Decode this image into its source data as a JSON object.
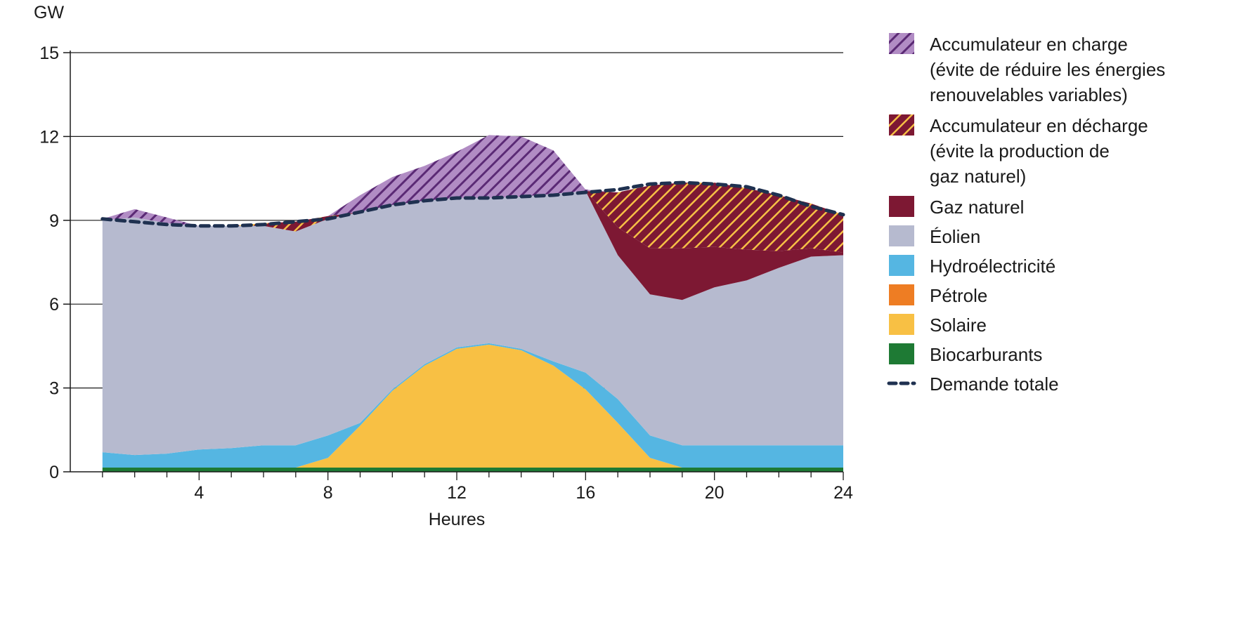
{
  "chart_data": {
    "type": "area",
    "ylabel": "GW",
    "xlabel": "Heures",
    "ylim": [
      0,
      15
    ],
    "xlim": [
      0,
      24
    ],
    "yticks": [
      0,
      3,
      6,
      9,
      12,
      15
    ],
    "xticks": [
      4,
      8,
      12,
      16,
      20,
      24
    ],
    "grid": true,
    "legend_position": "right",
    "x": [
      1,
      2,
      3,
      4,
      5,
      6,
      7,
      8,
      9,
      10,
      11,
      12,
      13,
      14,
      15,
      16,
      17,
      18,
      19,
      20,
      21,
      22,
      23,
      24
    ],
    "series": [
      {
        "key": "biocarburants",
        "label": "Biocarburants",
        "color": "#1e7a34",
        "values": [
          0.15,
          0.15,
          0.15,
          0.15,
          0.15,
          0.15,
          0.15,
          0.15,
          0.15,
          0.15,
          0.15,
          0.15,
          0.15,
          0.15,
          0.15,
          0.15,
          0.15,
          0.15,
          0.15,
          0.15,
          0.15,
          0.15,
          0.15,
          0.15
        ]
      },
      {
        "key": "petrole",
        "label": "Pétrole",
        "color": "#ee7d23",
        "values": [
          0,
          0,
          0,
          0,
          0,
          0,
          0,
          0,
          0,
          0,
          0,
          0,
          0,
          0,
          0,
          0,
          0,
          0,
          0,
          0,
          0,
          0,
          0,
          0
        ]
      },
      {
        "key": "solaire",
        "label": "Solaire",
        "color": "#f8c044",
        "values": [
          0,
          0,
          0,
          0,
          0,
          0,
          0,
          0.35,
          1.5,
          2.75,
          3.65,
          4.25,
          4.4,
          4.2,
          3.65,
          2.8,
          1.6,
          0.35,
          0,
          0,
          0,
          0,
          0,
          0
        ]
      },
      {
        "key": "hydro",
        "label": "Hydroélectricité",
        "color": "#55b6e2",
        "values": [
          0.55,
          0.45,
          0.5,
          0.65,
          0.7,
          0.8,
          0.8,
          0.8,
          0.1,
          0.05,
          0.05,
          0.05,
          0.05,
          0.05,
          0.15,
          0.6,
          0.85,
          0.8,
          0.8,
          0.8,
          0.8,
          0.8,
          0.8,
          0.8
        ]
      },
      {
        "key": "eolien",
        "label": "Éolien",
        "color": "#b6bacf",
        "values": [
          8.3,
          8.5,
          8.25,
          8.0,
          7.95,
          7.85,
          7.65,
          7.75,
          7.55,
          6.6,
          5.85,
          5.35,
          5.2,
          5.45,
          6.0,
          6.5,
          5.15,
          5.05,
          5.2,
          5.65,
          5.9,
          6.35,
          6.75,
          6.8
        ]
      },
      {
        "key": "gaz",
        "label": "Gaz naturel",
        "color": "#7d1833",
        "values": [
          0,
          0,
          0,
          0,
          0,
          0,
          0,
          0,
          0,
          0,
          0,
          0,
          0,
          0,
          0,
          0,
          1.0,
          1.65,
          1.85,
          1.45,
          1.1,
          0.6,
          0.3,
          0.1
        ]
      },
      {
        "key": "decharge",
        "label": "Accumulateur en décharge\n(évite la production de\ngaz naturel)",
        "color": "#7d1833",
        "hatch": "#f7c045",
        "values": [
          0,
          0,
          0,
          0,
          0,
          0.1,
          0.35,
          0.1,
          0,
          0,
          0,
          0,
          0,
          0,
          0,
          0,
          1.25,
          2.25,
          2.35,
          2.3,
          2.2,
          2.0,
          1.6,
          1.35
        ]
      },
      {
        "key": "charge",
        "label": "Accumulateur en charge\n(évite de réduire les énergies\nrenouvelables variables)",
        "color": "#b18cc4",
        "hatch": "#5b2a75",
        "values": [
          0.05,
          0.3,
          0.2,
          0,
          0,
          0,
          0,
          0,
          0.6,
          1.0,
          1.25,
          1.65,
          2.25,
          2.15,
          1.55,
          0.05,
          0,
          0,
          0,
          0,
          0,
          0,
          0,
          0
        ]
      },
      {
        "key": "demande",
        "label": "Demande totale",
        "color": "#1f3150",
        "style": "dashed",
        "values": [
          9.05,
          8.95,
          8.85,
          8.8,
          8.8,
          8.85,
          8.95,
          9.05,
          9.3,
          9.55,
          9.7,
          9.8,
          9.8,
          9.85,
          9.9,
          10.0,
          10.1,
          10.3,
          10.35,
          10.3,
          10.2,
          9.9,
          9.5,
          9.2
        ]
      }
    ],
    "legend_order": [
      "charge",
      "decharge",
      "gaz",
      "eolien",
      "hydro",
      "petrole",
      "solaire",
      "biocarburants",
      "demande"
    ]
  }
}
